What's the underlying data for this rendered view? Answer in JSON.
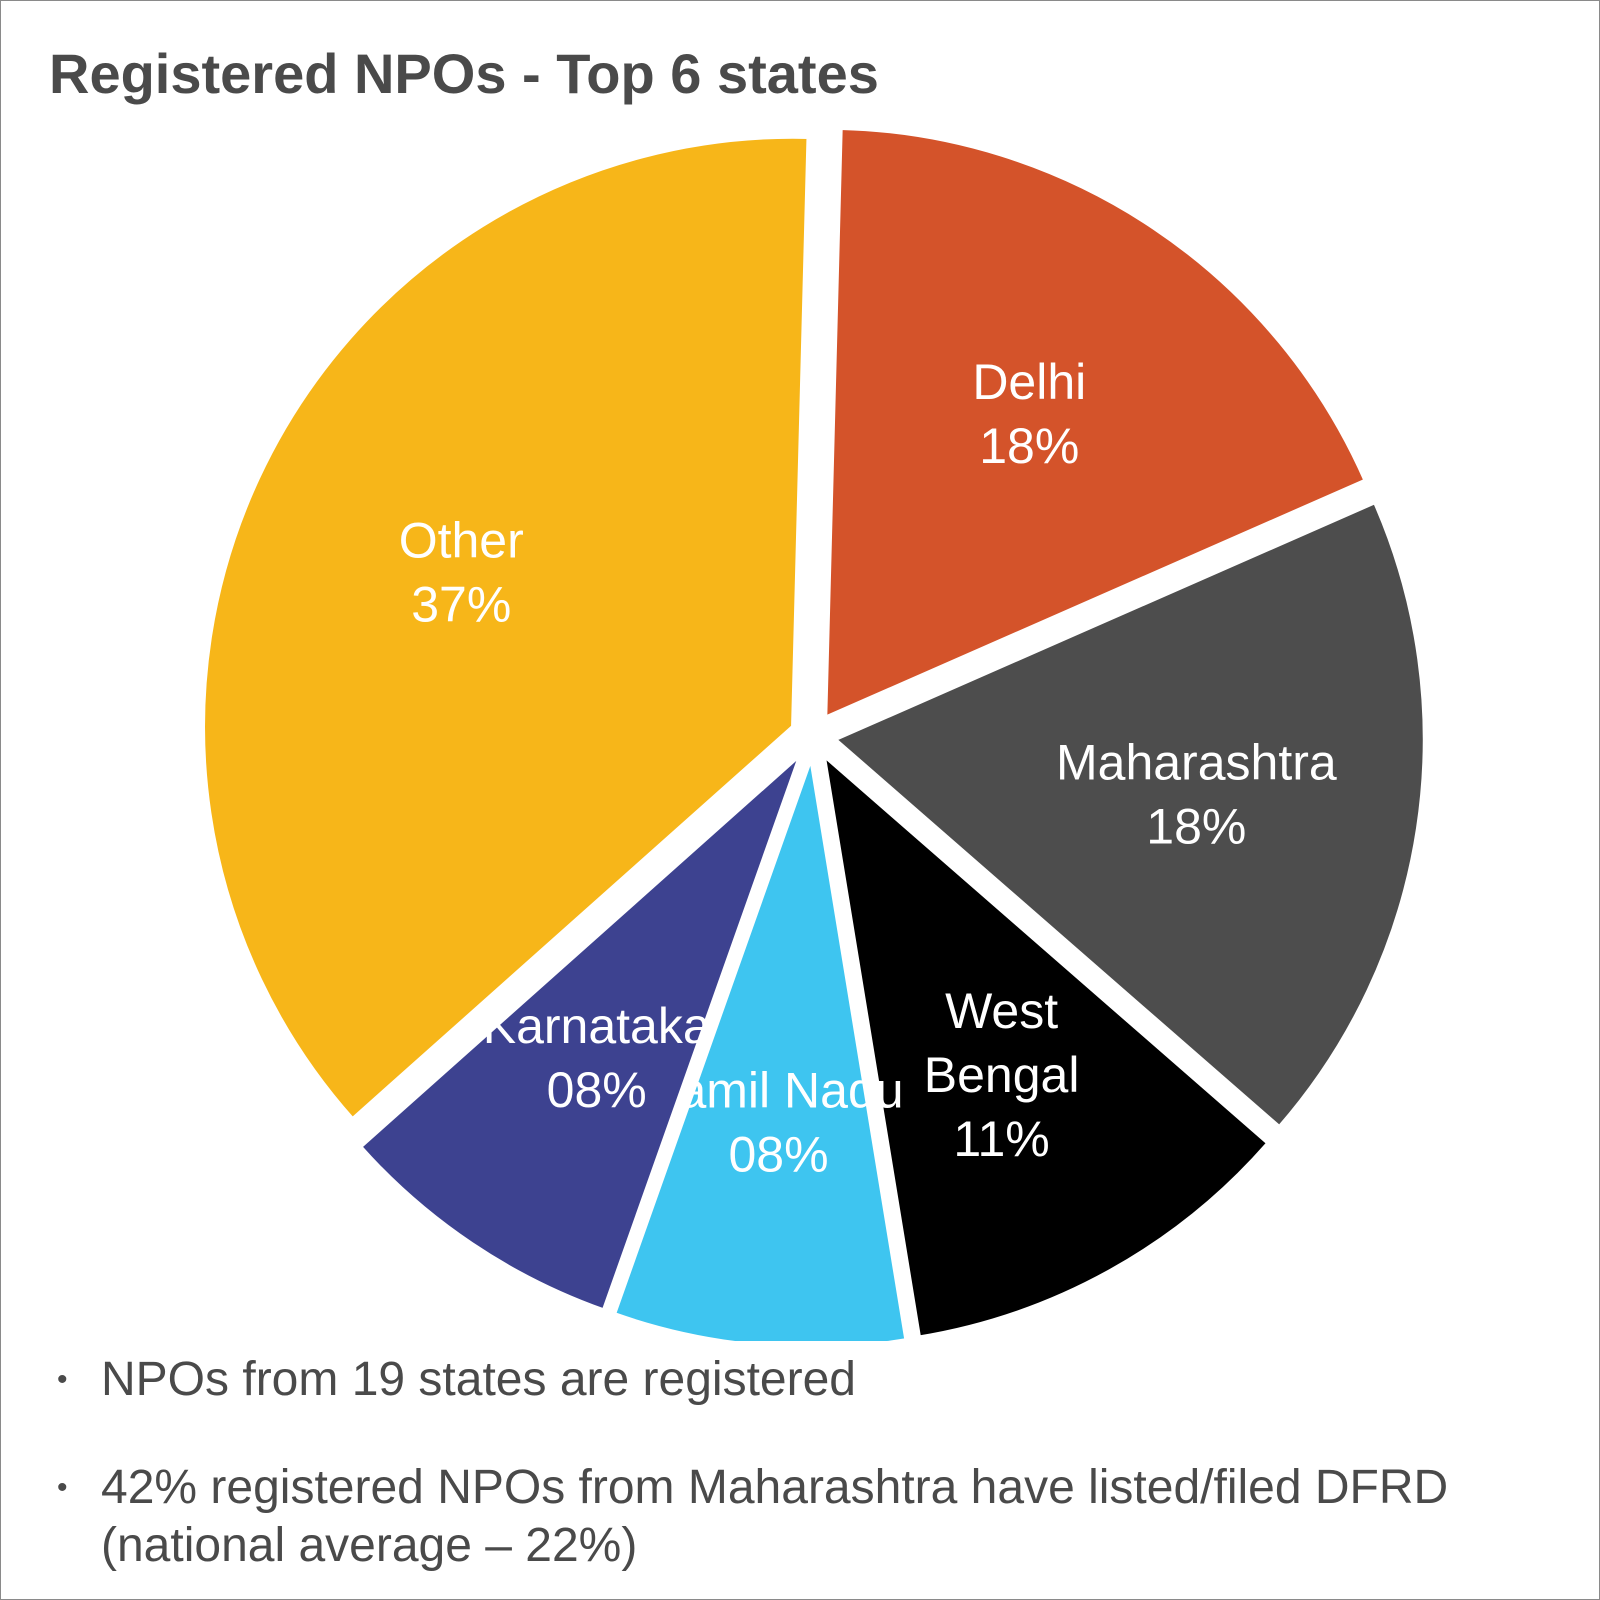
{
  "chart_data": {
    "type": "pie",
    "title": "Registered NPOs - Top 6 states",
    "slices": [
      {
        "name": "Delhi",
        "value": 18,
        "label_lines": [
          "Delhi",
          "18%"
        ],
        "color": "#d4532a"
      },
      {
        "name": "Maharashtra",
        "value": 18,
        "label_lines": [
          "Maharashtra",
          "18%"
        ],
        "color": "#4d4d4d"
      },
      {
        "name": "West Bengal",
        "value": 11,
        "label_lines": [
          "West",
          "Bengal",
          "11%"
        ],
        "color": "#000000"
      },
      {
        "name": "Tamil Nadu",
        "value": 8,
        "label_lines": [
          "Tamil Nadu",
          "08%"
        ],
        "color": "#3ec5f0"
      },
      {
        "name": "Karnataka",
        "value": 8,
        "label_lines": [
          "Karnataka",
          "08%"
        ],
        "color": "#3d4290"
      },
      {
        "name": "Other",
        "value": 37,
        "label_lines": [
          "Other",
          "37%"
        ],
        "color": "#f7b619"
      }
    ]
  },
  "notes": [
    "NPOs from 19 states are registered",
    "42% registered NPOs from Maharashtra have listed/filed DFRD (national average – 22%)"
  ],
  "bullet_char": "•"
}
